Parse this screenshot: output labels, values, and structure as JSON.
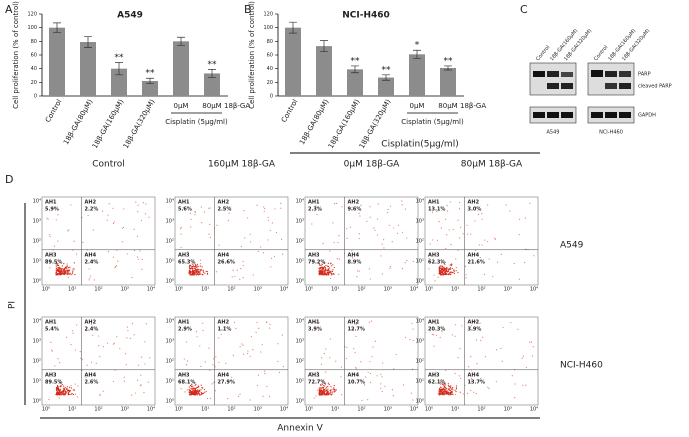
{
  "chart_data": [
    {
      "type": "bar",
      "panel_label": "A",
      "title": "A549",
      "y_label": "Cell proliferation (% of control)",
      "categories": [
        "Control",
        "18β-GA(80μM)",
        "18β-GA(160μM)",
        "18β-GA(320μM)",
        "0μM",
        "80μM"
      ],
      "values": [
        100,
        79,
        40,
        22,
        80,
        33
      ],
      "errors": [
        7,
        8,
        9,
        4,
        6,
        6
      ],
      "significance": [
        null,
        null,
        "**",
        "**",
        null,
        "**"
      ],
      "color": "#8c8c8c",
      "ylim": [
        0,
        120
      ],
      "yticks": [
        0,
        20,
        40,
        60,
        80,
        100,
        120
      ],
      "row_label": "18β-GA",
      "group_label": "Cisplatin (5μg/ml)"
    },
    {
      "type": "bar",
      "panel_label": "B",
      "title": "NCI-H460",
      "y_label": "Cell proliferation (% of control)",
      "categories": [
        "Control",
        "18β-GA(80μM)",
        "18β-GA(160μM)",
        "18β-GA(320μM)",
        "0μM",
        "80μM"
      ],
      "values": [
        100,
        73,
        39,
        27,
        61,
        41
      ],
      "errors": [
        8,
        8,
        5,
        4,
        6,
        3
      ],
      "significance": [
        null,
        null,
        "**",
        "**",
        "*",
        "**"
      ],
      "color": "#8c8c8c",
      "ylim": [
        0,
        120
      ],
      "yticks": [
        0,
        20,
        40,
        60,
        80,
        100,
        120
      ],
      "row_label": "18β-GA",
      "group_label": "Cisplatin (5μg/ml)"
    }
  ],
  "panel_c": {
    "label": "C",
    "columns": [
      "Control",
      "18β-GA(160μM)",
      "18β-GA(320μM)"
    ],
    "cell_lines": [
      "A549",
      "NCI-H460"
    ],
    "proteins": [
      "PARP",
      "cleaved PARP",
      "GAPDH"
    ]
  },
  "panel_d": {
    "label": "D",
    "group_header": "Cisplatin(5μg/ml)",
    "columns": [
      "Control",
      "160μM 18β-GA",
      "0μM 18β-GA",
      "80μM 18β-GA"
    ],
    "axis_ticks": [
      "10⁰",
      "10¹",
      "10²",
      "10³",
      "10⁴"
    ],
    "y_label": "PI",
    "x_label": "Annexin V",
    "rows": [
      {
        "name": "A549",
        "plots": [
          [
            {
              "name": "AH1",
              "value": "5.9%"
            },
            {
              "name": "AH2",
              "value": "2.2%"
            },
            {
              "name": "AH3",
              "value": "89.5%"
            },
            {
              "name": "AH4",
              "value": "2.4%"
            }
          ],
          [
            {
              "name": "AH1",
              "value": "5.6%"
            },
            {
              "name": "AH2",
              "value": "2.5%"
            },
            {
              "name": "AH3",
              "value": "65.3%"
            },
            {
              "name": "AH4",
              "value": "26.6%"
            }
          ],
          [
            {
              "name": "AH1",
              "value": "2.3%"
            },
            {
              "name": "AH2",
              "value": "9.6%"
            },
            {
              "name": "AH3",
              "value": "79.2%"
            },
            {
              "name": "AH4",
              "value": "8.9%"
            }
          ],
          [
            {
              "name": "AH1",
              "value": "13.1%"
            },
            {
              "name": "AH2",
              "value": "3.0%"
            },
            {
              "name": "AH3",
              "value": "62.3%"
            },
            {
              "name": "AH4",
              "value": "21.6%"
            }
          ]
        ]
      },
      {
        "name": "NCI-H460",
        "plots": [
          [
            {
              "name": "AH1",
              "value": "5.4%"
            },
            {
              "name": "AH2",
              "value": "2.4%"
            },
            {
              "name": "AH3",
              "value": "89.5%"
            },
            {
              "name": "AH4",
              "value": "2.6%"
            }
          ],
          [
            {
              "name": "AH1",
              "value": "2.9%"
            },
            {
              "name": "AH2",
              "value": "1.1%"
            },
            {
              "name": "AH3",
              "value": "68.1%"
            },
            {
              "name": "AH4",
              "value": "27.9%"
            }
          ],
          [
            {
              "name": "AH1",
              "value": "3.9%"
            },
            {
              "name": "AH2",
              "value": "12.7%"
            },
            {
              "name": "AH3",
              "value": "72.7%"
            },
            {
              "name": "AH4",
              "value": "10.7%"
            }
          ],
          [
            {
              "name": "AH1",
              "value": "20.3%"
            },
            {
              "name": "AH2",
              "value": "3.9%"
            },
            {
              "name": "AH3",
              "value": "62.1%"
            },
            {
              "name": "AH4",
              "value": "13.7%"
            }
          ]
        ]
      }
    ]
  }
}
